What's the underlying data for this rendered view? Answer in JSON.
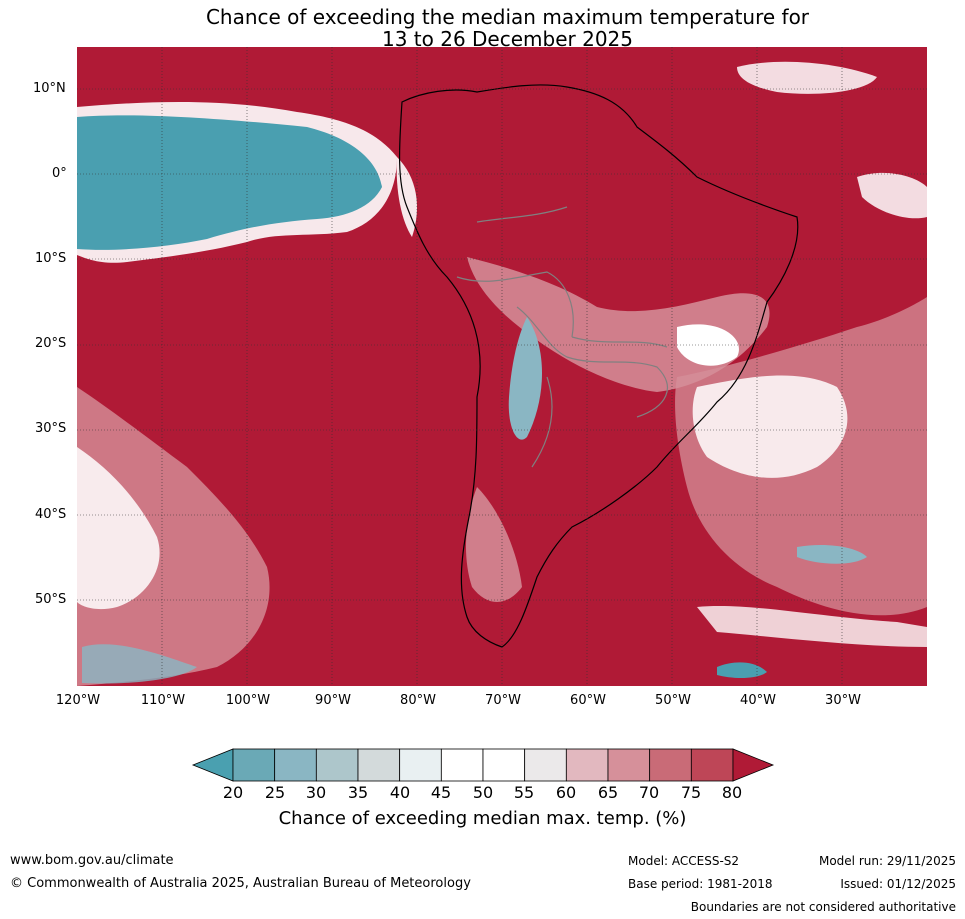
{
  "title": {
    "line1": "Chance of exceeding the median maximum temperature for",
    "line2": "13 to 26 December 2025"
  },
  "map": {
    "lat_labels": [
      "10°N",
      "0°",
      "10°S",
      "20°S",
      "30°S",
      "40°S",
      "50°S"
    ],
    "lon_labels": [
      "120°W",
      "110°W",
      "100°W",
      "90°W",
      "80°W",
      "70°W",
      "60°W",
      "50°W",
      "40°W",
      "30°W"
    ],
    "colors": {
      "ocean_high": "#b01a36",
      "cool": "#4a9fb0",
      "neutral": "#ffffff"
    }
  },
  "colorbar": {
    "ticks": [
      "20",
      "25",
      "30",
      "35",
      "40",
      "45",
      "50",
      "55",
      "60",
      "65",
      "70",
      "75",
      "80"
    ],
    "colors": [
      "#4aa0b0",
      "#6aa9b6",
      "#8ab6c3",
      "#adc6cb",
      "#d3dadb",
      "#e9f0f2",
      "#ffffff",
      "#ffffff",
      "#ebe9ea",
      "#e2b8bf",
      "#d6909a",
      "#c96b77",
      "#be4657",
      "#b01a36"
    ],
    "label": "Chance of exceeding median max. temp. (%)"
  },
  "footer": {
    "website": "www.bom.gov.au/climate",
    "copyright": "© Commonwealth of Australia 2025, Australian Bureau of Meteorology",
    "model": "Model: ACCESS-S2",
    "base_period": "Base period: 1981-2018",
    "model_run": "Model run: 29/11/2025",
    "issued": "Issued: 01/12/2025",
    "disclaimer": "Boundaries are not considered authoritative"
  }
}
